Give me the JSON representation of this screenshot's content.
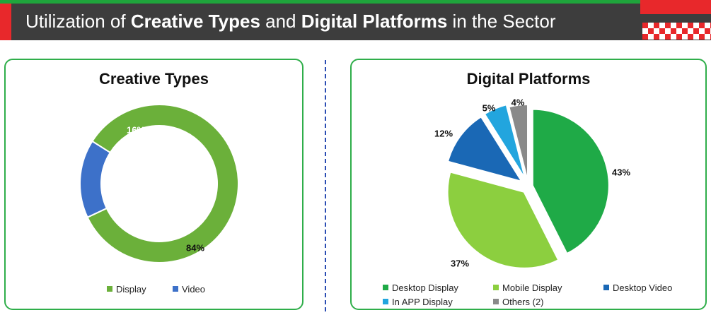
{
  "header": {
    "title_part1": "Utilization of ",
    "title_bold1": "Creative Types",
    "title_part2": " and ",
    "title_bold2": "Digital Platforms",
    "title_part3": " in the Sector"
  },
  "chart_data": [
    {
      "type": "pie",
      "variant": "donut",
      "title": "Creative Types",
      "categories": [
        "Display",
        "Video"
      ],
      "values": [
        84,
        16
      ],
      "labels": [
        "84%",
        "16%"
      ],
      "colors": [
        "#6bb03a",
        "#3d71c9"
      ],
      "legend_position": "bottom"
    },
    {
      "type": "pie",
      "variant": "exploded",
      "title": "Digital Platforms",
      "categories": [
        "Desktop Display",
        "Mobile Display",
        "Desktop Video",
        "In APP Display",
        "Others (2)"
      ],
      "values": [
        43,
        37,
        12,
        5,
        4
      ],
      "labels": [
        "43%",
        "37%",
        "12%",
        "5%",
        "4%"
      ],
      "colors": [
        "#1faa47",
        "#8ccf3f",
        "#1a68b5",
        "#22a5de",
        "#8a8a8a"
      ],
      "legend_position": "bottom"
    }
  ]
}
